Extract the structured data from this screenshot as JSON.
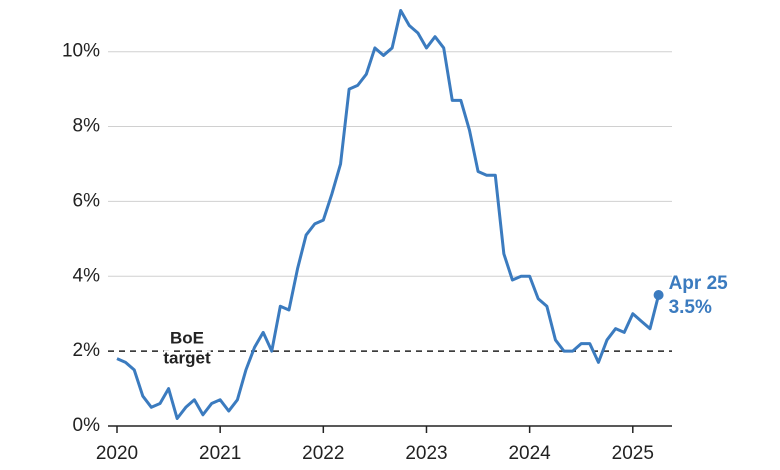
{
  "chart_data": {
    "type": "line",
    "x": [
      2020,
      2020.083,
      2020.167,
      2020.25,
      2020.333,
      2020.417,
      2020.5,
      2020.583,
      2020.667,
      2020.75,
      2020.833,
      2020.917,
      2021,
      2021.083,
      2021.167,
      2021.25,
      2021.333,
      2021.417,
      2021.5,
      2021.583,
      2021.667,
      2021.75,
      2021.833,
      2021.917,
      2022,
      2022.083,
      2022.167,
      2022.25,
      2022.333,
      2022.417,
      2022.5,
      2022.583,
      2022.667,
      2022.75,
      2022.833,
      2022.917,
      2023,
      2023.083,
      2023.167,
      2023.25,
      2023.333,
      2023.417,
      2023.5,
      2023.583,
      2023.667,
      2023.75,
      2023.833,
      2023.917,
      2024,
      2024.083,
      2024.167,
      2024.25,
      2024.333,
      2024.417,
      2024.5,
      2024.583,
      2024.667,
      2024.75,
      2024.833,
      2024.917,
      2025,
      2025.083,
      2025.167,
      2025.25
    ],
    "series": [
      {
        "color": "#3b7bbf",
        "values": [
          1.8,
          1.7,
          1.5,
          0.8,
          0.5,
          0.6,
          1.0,
          0.2,
          0.5,
          0.7,
          0.3,
          0.6,
          0.7,
          0.4,
          0.7,
          1.5,
          2.1,
          2.5,
          2.0,
          3.2,
          3.1,
          4.2,
          5.1,
          5.4,
          5.5,
          6.2,
          7.0,
          9.0,
          9.1,
          9.4,
          10.1,
          9.9,
          10.1,
          11.1,
          10.7,
          10.5,
          10.1,
          10.4,
          10.1,
          8.7,
          8.7,
          7.9,
          6.8,
          6.7,
          6.7,
          4.6,
          3.9,
          4.0,
          4.0,
          3.4,
          3.2,
          2.3,
          2.0,
          2.0,
          2.2,
          2.2,
          1.7,
          2.3,
          2.6,
          2.5,
          3.0,
          2.8,
          2.6,
          3.5
        ]
      }
    ],
    "xlim": [
      2020,
      2025.38
    ],
    "xticks": [
      2020,
      2021,
      2022,
      2023,
      2024,
      2025
    ],
    "ylim": [
      0,
      10.9
    ],
    "yticks": [
      {
        "value": 0,
        "label": "0%"
      },
      {
        "value": 2,
        "label": "2%"
      },
      {
        "value": 4,
        "label": "4%"
      },
      {
        "value": 6,
        "label": "6%"
      },
      {
        "value": 8,
        "label": "8%"
      },
      {
        "value": 10,
        "label": "10%"
      }
    ],
    "grid": true,
    "reference_line": {
      "value": 2,
      "label": [
        "BoE",
        "target"
      ]
    },
    "annotation": {
      "lines": [
        "Apr 25",
        "3.5%"
      ]
    }
  }
}
